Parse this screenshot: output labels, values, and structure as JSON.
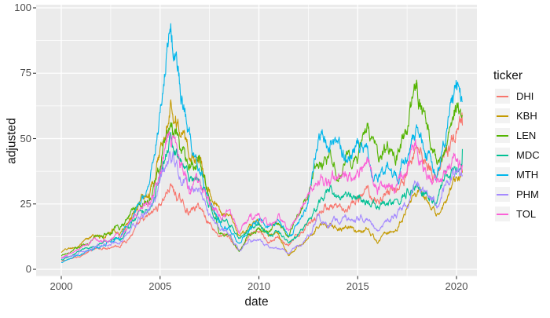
{
  "figure": {
    "background": "#FFFFFF",
    "panel_background": "#EBEBEB",
    "grid_major_color": "#FFFFFF",
    "grid_minor_color": "#FFFFFF",
    "axis_text_color": "#4D4D4D",
    "axis_title_color": "#111111",
    "tick_mark_color": "#333333"
  },
  "axes": {
    "x": {
      "title": "date",
      "ticks": [
        2000,
        2005,
        2010,
        2015,
        2020
      ],
      "tick_labels": [
        "2000",
        "2005",
        "2010",
        "2015",
        "2020"
      ],
      "minor_breaks": [
        2002.5,
        2007.5,
        2012.5,
        2017.5
      ]
    },
    "y": {
      "title": "adjusted",
      "ticks": [
        0,
        25,
        50,
        75,
        100
      ],
      "tick_labels": [
        "0",
        "25",
        "50",
        "75",
        "100"
      ],
      "minor_breaks": [
        12.5,
        37.5,
        62.5,
        87.5
      ]
    }
  },
  "legend": {
    "title": "ticker",
    "key_background": "#F2F2F2",
    "entries": [
      {
        "label": "DHI",
        "color": "#F8766D"
      },
      {
        "label": "KBH",
        "color": "#C49A00"
      },
      {
        "label": "LEN",
        "color": "#53B400"
      },
      {
        "label": "MDC",
        "color": "#00C094"
      },
      {
        "label": "MTH",
        "color": "#00B6EB"
      },
      {
        "label": "PHM",
        "color": "#A58AFF"
      },
      {
        "label": "TOL",
        "color": "#FB61D7"
      }
    ]
  },
  "chart_data": {
    "type": "line",
    "title": "",
    "xlabel": "date",
    "ylabel": "adjusted",
    "legend_title": "ticker",
    "legend_position": "right",
    "grid": true,
    "xlim": [
      1998.7,
      2021.0
    ],
    "ylim": [
      -2.5,
      101
    ],
    "x": [
      2000,
      2000.5,
      2001,
      2001.5,
      2002,
      2002.5,
      2003,
      2003.5,
      2004,
      2004.5,
      2005,
      2005.5,
      2006,
      2006.5,
      2007,
      2007.5,
      2008,
      2008.5,
      2009,
      2009.5,
      2010,
      2010.5,
      2011,
      2011.5,
      2012,
      2012.5,
      2013,
      2013.5,
      2014,
      2014.5,
      2015,
      2015.5,
      2016,
      2016.5,
      2017,
      2017.5,
      2018,
      2018.5,
      2019,
      2019.5,
      2020,
      2020.3
    ],
    "series": [
      {
        "name": "DHI",
        "color": "#F8766D",
        "values": [
          3,
          4,
          5.5,
          7,
          8,
          9,
          9.5,
          13,
          17,
          20,
          25,
          32,
          26,
          22,
          24,
          18,
          13,
          12,
          7,
          12,
          14,
          11,
          12,
          9,
          13,
          18,
          22,
          25,
          22,
          22,
          26,
          30,
          26,
          30,
          31,
          37,
          48,
          42,
          35,
          45,
          52,
          55
        ]
      },
      {
        "name": "KBH",
        "color": "#C49A00",
        "values": [
          6.5,
          8,
          9,
          12,
          13,
          14,
          14,
          20,
          27,
          30,
          45,
          68,
          55,
          45,
          42,
          32,
          22,
          20,
          12,
          16,
          17,
          12,
          13,
          5,
          9,
          12,
          17,
          18,
          16,
          16,
          15,
          15,
          10,
          15,
          16,
          23,
          31,
          25,
          20,
          26,
          33,
          37
        ]
      },
      {
        "name": "LEN",
        "color": "#53B400",
        "values": [
          5,
          6.5,
          9,
          11,
          13,
          15,
          16,
          22,
          25,
          28,
          40,
          54,
          45,
          40,
          42,
          28,
          15,
          13,
          7,
          13,
          16,
          14,
          18,
          13,
          20,
          28,
          42,
          40,
          38,
          40,
          45,
          52,
          42,
          46,
          44,
          53,
          71,
          52,
          40,
          50,
          61,
          59
        ]
      },
      {
        "name": "MDC",
        "color": "#00C094",
        "values": [
          3.5,
          5,
          7,
          9,
          10,
          11,
          12,
          17,
          22,
          25,
          35,
          50,
          40,
          33,
          33,
          25,
          20,
          18,
          12,
          16,
          18,
          14,
          15,
          10,
          14,
          18,
          24,
          30,
          27,
          26,
          27,
          26,
          23,
          25,
          25,
          30,
          35,
          30,
          25,
          35,
          40,
          46
        ]
      },
      {
        "name": "MTH",
        "color": "#00B6EB",
        "values": [
          2.5,
          4,
          6,
          8,
          9,
          11,
          12,
          18,
          25,
          35,
          60,
          96,
          70,
          50,
          40,
          28,
          18,
          15,
          9,
          15,
          20,
          16,
          18,
          12,
          17,
          28,
          50,
          52,
          45,
          43,
          48,
          44,
          33,
          38,
          35,
          42,
          53,
          45,
          34,
          52,
          75,
          64
        ]
      },
      {
        "name": "PHM",
        "color": "#A58AFF",
        "values": [
          4,
          5,
          6.5,
          8,
          9,
          10,
          11,
          15,
          20,
          23,
          33,
          45,
          36,
          30,
          30,
          22,
          15,
          13,
          8,
          11,
          11,
          8,
          8,
          6,
          9,
          13,
          19,
          18,
          19,
          19,
          20,
          20,
          16,
          20,
          21,
          26,
          33,
          28,
          26,
          33,
          38,
          36
        ]
      },
      {
        "name": "TOL",
        "color": "#FB61D7",
        "values": [
          4.5,
          6,
          8,
          10,
          11,
          12,
          13,
          19,
          23,
          26,
          40,
          56,
          42,
          32,
          33,
          25,
          20,
          22,
          15,
          19,
          20,
          17,
          20,
          14,
          20,
          27,
          35,
          33,
          35,
          34,
          38,
          40,
          31,
          32,
          32,
          40,
          50,
          37,
          33,
          37,
          44,
          40
        ]
      }
    ]
  }
}
